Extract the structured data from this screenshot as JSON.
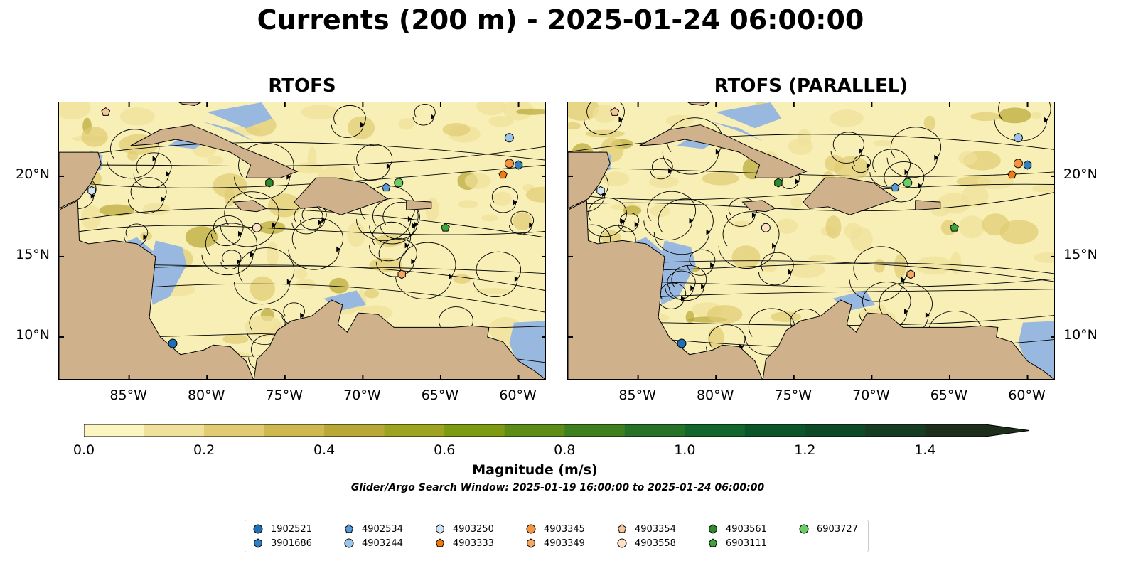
{
  "title": "Currents (200 m) - 2025-01-24 06:00:00",
  "panels": [
    {
      "title": "RTOFS"
    },
    {
      "title": "RTOFS (PARALLEL)"
    }
  ],
  "axes": {
    "lon_labels": [
      "85°W",
      "80°W",
      "75°W",
      "70°W",
      "65°W",
      "60°W"
    ],
    "lat_labels": [
      "20°N",
      "15°N",
      "10°N"
    ],
    "lon_range": [
      -89.5,
      -58.2
    ],
    "lat_range": [
      7.3,
      24.6
    ]
  },
  "colorbar": {
    "label": "Magnitude (m/s)",
    "ticks": [
      "0.0",
      "0.2",
      "0.4",
      "0.6",
      "0.8",
      "1.0",
      "1.2",
      "1.4"
    ],
    "range": [
      0.0,
      1.5
    ],
    "step": 0.1,
    "colors": [
      "#fbf5c1",
      "#f0e19a",
      "#e1cc74",
      "#cfb84f",
      "#b8a835",
      "#9ea321",
      "#7e9a12",
      "#5d8d17",
      "#3f801e",
      "#267226",
      "#11652d",
      "#0a5629",
      "#0e4a25",
      "#163d21",
      "#1c2f1a"
    ],
    "extend": "max"
  },
  "search_window": "Glider/Argo Search Window: 2025-01-19 16:00:00 to 2025-01-24 06:00:00",
  "colors": {
    "water": "#f7efb5",
    "land": "#cfb18c",
    "shallow": "#98b8e0",
    "stream": "#000000"
  },
  "floats": [
    {
      "id": "1902521",
      "marker": "circle",
      "color": "#1f6fb4",
      "lon": -82.2,
      "lat": 9.6
    },
    {
      "id": "3901686",
      "marker": "hexagon",
      "color": "#2f7fc1",
      "lon": -60.0,
      "lat": 20.7
    },
    {
      "id": "4902534",
      "marker": "pentagon",
      "color": "#5a9bd5",
      "lon": -68.5,
      "lat": 19.3
    },
    {
      "id": "4903244",
      "marker": "circle",
      "color": "#9ac4e8",
      "lon": -60.6,
      "lat": 22.4
    },
    {
      "id": "4903250",
      "marker": "hexagon",
      "color": "#cfe5f6",
      "lon": -87.4,
      "lat": 19.1
    },
    {
      "id": "4903333",
      "marker": "pentagon",
      "color": "#f07b10",
      "lon": -61.0,
      "lat": 20.1
    },
    {
      "id": "4903345",
      "marker": "circle",
      "color": "#f59340",
      "lon": -60.6,
      "lat": 20.8
    },
    {
      "id": "4903349",
      "marker": "hexagon",
      "color": "#f7a862",
      "lon": -67.5,
      "lat": 13.9
    },
    {
      "id": "4903354",
      "marker": "pentagon",
      "color": "#f9c59a",
      "lon": -86.5,
      "lat": 24.0
    },
    {
      "id": "4903558",
      "marker": "circle",
      "color": "#fde0c6",
      "lon": -76.8,
      "lat": 16.8
    },
    {
      "id": "4903561",
      "marker": "hexagon",
      "color": "#2e8b2e",
      "lon": -76.0,
      "lat": 19.6
    },
    {
      "id": "6903111",
      "marker": "pentagon",
      "color": "#3ea43e",
      "lon": -64.7,
      "lat": 16.8
    },
    {
      "id": "6903727",
      "marker": "circle",
      "color": "#6ccc66",
      "lon": -67.7,
      "lat": 19.6
    }
  ]
}
